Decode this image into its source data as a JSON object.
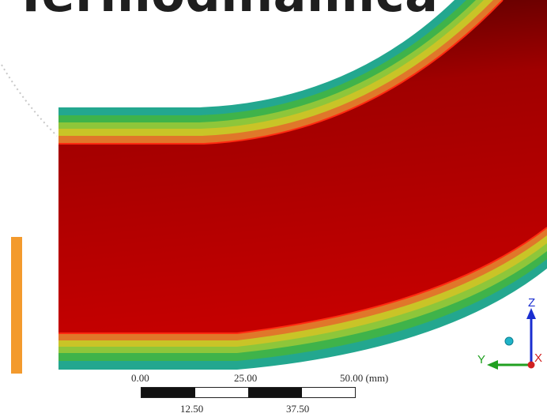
{
  "slide": {
    "title": "Termodinâmica"
  },
  "scale": {
    "top_labels": [
      "0.00",
      "25.00",
      "50.00 (mm)"
    ],
    "bottom_labels": [
      "12.50",
      "37.50"
    ]
  },
  "triad": {
    "z_label": "Z",
    "y_label": "Y",
    "x_label": "X"
  },
  "colors": {
    "accent": "#f39a2d",
    "core_red": "#c00000",
    "core_dark": "#5a0000",
    "band_orange": "#e07020",
    "band_yellow": "#c8c820",
    "band_green": "#40b040",
    "band_teal": "#20a888",
    "axis_z": "#1a2ed0",
    "axis_y": "#20a020",
    "axis_x": "#d02020"
  },
  "icons": [
    "coordinate-triad-icon",
    "origin-sphere-icon"
  ]
}
